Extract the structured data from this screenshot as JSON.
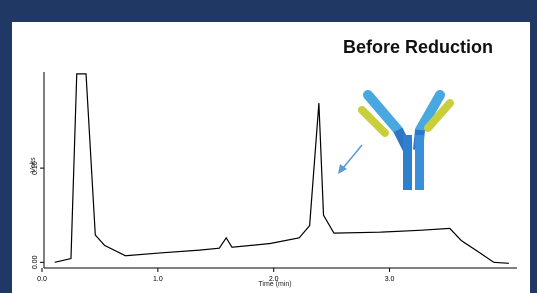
{
  "chart_data": {
    "type": "line",
    "title": "Before Reduction",
    "xlabel": "Time (min)",
    "ylabel": "Volts",
    "x": [
      0.11,
      0.25,
      0.3,
      0.38,
      0.46,
      0.54,
      0.72,
      1.02,
      1.36,
      1.53,
      1.59,
      1.64,
      1.97,
      2.22,
      2.31,
      2.39,
      2.43,
      2.52,
      2.91,
      3.26,
      3.52,
      3.62,
      3.78,
      3.9,
      4.03
    ],
    "series": [
      {
        "color": "#000000",
        "values": [
          0.0,
          0.004,
          0.2,
          0.2,
          0.029,
          0.018,
          0.007,
          0.01,
          0.013,
          0.015,
          0.026,
          0.016,
          0.02,
          0.026,
          0.039,
          0.169,
          0.05,
          0.031,
          0.032,
          0.034,
          0.036,
          0.023,
          0.01,
          0.0,
          -0.001
        ]
      }
    ],
    "xlim": [
      0,
      4.1
    ],
    "ylim": [
      -0.006,
      0.202
    ],
    "xticks": [
      {
        "value": 0,
        "label": "0.0"
      },
      {
        "value": 1,
        "label": "1.0"
      },
      {
        "value": 2,
        "label": "2.0"
      },
      {
        "value": 3,
        "label": "3.0"
      }
    ],
    "yticks": [
      {
        "value": 0,
        "label": "0.00"
      },
      {
        "value": 0.1,
        "label": "0.10"
      }
    ]
  }
}
